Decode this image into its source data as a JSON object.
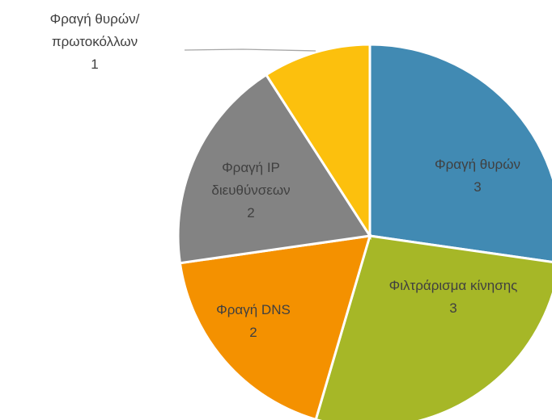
{
  "chart_data": {
    "type": "pie",
    "categories": [
      "Φραγή θυρών",
      "Φιλτράρισμα κίνησης",
      "Φραγή DNS",
      "Φραγή IP διευθύνσεων",
      "Φραγή θυρών/πρωτοκόλλων"
    ],
    "values": [
      3,
      3,
      2,
      2,
      1
    ],
    "colors": [
      "#418ab3",
      "#a6b727",
      "#f49100",
      "#838383",
      "#fcc00d"
    ]
  }
}
